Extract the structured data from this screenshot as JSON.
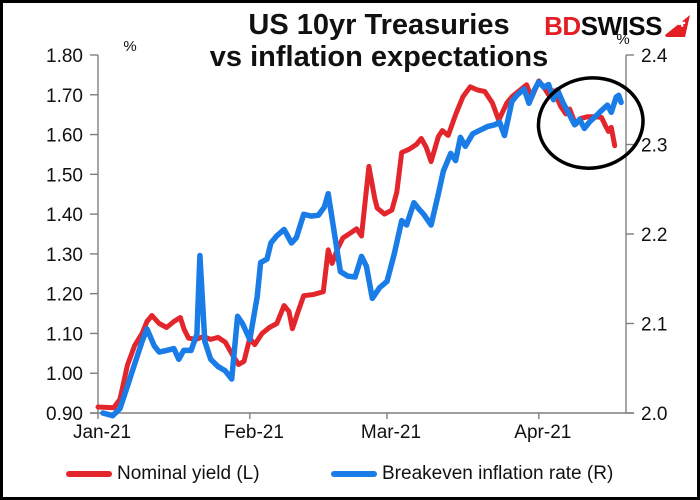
{
  "header": {
    "title_line1": "US 10yr Treasuries",
    "title_line2": "vs inflation expectations",
    "logo_bd": "BD",
    "logo_swiss": "SWISS"
  },
  "legend": {
    "items": [
      {
        "label": "Nominal yield (L)",
        "color": "#e2262c"
      },
      {
        "label": "Breakeven inflation rate (R)",
        "color": "#1a7ce6"
      }
    ]
  },
  "chart_data": {
    "type": "line",
    "title": "US 10yr Treasuries vs inflation expectations",
    "grid": false,
    "legend_position": "bottom",
    "left_axis": {
      "label": "%",
      "min": 0.9,
      "max": 1.8,
      "tick_labels": [
        "1.80",
        "1.70",
        "1.60",
        "1.50",
        "1.40",
        "1.30",
        "1.20",
        "1.10",
        "1.00",
        "0.90"
      ]
    },
    "right_axis": {
      "label": "%",
      "min": 2.0,
      "max": 2.4,
      "tick_labels": [
        "2.4",
        "2.3",
        "2.2",
        "2.1",
        "2.0"
      ]
    },
    "x_axis": {
      "domain_days": [
        0,
        107.8
      ],
      "tick_days": [
        0,
        31,
        59,
        90
      ],
      "tick_labels": [
        "Jan-21",
        "Feb-21",
        "Mar-21",
        "Apr-21"
      ]
    },
    "series": [
      {
        "name": "Nominal yield (L)",
        "axis": "left",
        "color": "#e2262c",
        "width": 5,
        "points": [
          [
            0,
            0.915
          ],
          [
            3.2,
            0.913
          ],
          [
            4.5,
            0.935
          ],
          [
            6,
            1.02
          ],
          [
            7.5,
            1.07
          ],
          [
            9,
            1.1
          ],
          [
            10,
            1.13
          ],
          [
            11,
            1.145
          ],
          [
            12.5,
            1.125
          ],
          [
            14,
            1.115
          ],
          [
            15.5,
            1.13
          ],
          [
            16.8,
            1.14
          ],
          [
            17.6,
            1.11
          ],
          [
            18.5,
            1.088
          ],
          [
            20,
            1.085
          ],
          [
            21.5,
            1.092
          ],
          [
            23,
            1.085
          ],
          [
            24.5,
            1.09
          ],
          [
            26,
            1.078
          ],
          [
            27.5,
            1.045
          ],
          [
            28.7,
            1.022
          ],
          [
            29.8,
            1.03
          ],
          [
            31,
            1.088
          ],
          [
            32,
            1.072
          ],
          [
            33.5,
            1.1
          ],
          [
            35,
            1.115
          ],
          [
            36.5,
            1.125
          ],
          [
            38,
            1.17
          ],
          [
            39,
            1.155
          ],
          [
            39.7,
            1.112
          ],
          [
            41,
            1.16
          ],
          [
            42,
            1.195
          ],
          [
            44,
            1.198
          ],
          [
            46,
            1.205
          ],
          [
            47,
            1.31
          ],
          [
            47.8,
            1.276
          ],
          [
            49,
            1.315
          ],
          [
            50,
            1.34
          ],
          [
            51.5,
            1.352
          ],
          [
            52.8,
            1.363
          ],
          [
            53.8,
            1.345
          ],
          [
            55.3,
            1.52
          ],
          [
            56.5,
            1.44
          ],
          [
            57,
            1.415
          ],
          [
            58.5,
            1.4
          ],
          [
            60,
            1.41
          ],
          [
            61,
            1.455
          ],
          [
            62,
            1.555
          ],
          [
            63.5,
            1.563
          ],
          [
            65,
            1.575
          ],
          [
            66,
            1.59
          ],
          [
            67,
            1.568
          ],
          [
            68,
            1.532
          ],
          [
            69.5,
            1.595
          ],
          [
            70.3,
            1.61
          ],
          [
            71.5,
            1.598
          ],
          [
            73,
            1.65
          ],
          [
            74.5,
            1.695
          ],
          [
            76,
            1.72
          ],
          [
            77.5,
            1.712
          ],
          [
            79,
            1.708
          ],
          [
            80.5,
            1.68
          ],
          [
            81.8,
            1.636
          ],
          [
            83.5,
            1.68
          ],
          [
            84.5,
            1.695
          ],
          [
            86,
            1.71
          ],
          [
            87.5,
            1.725
          ],
          [
            88.5,
            1.692
          ],
          [
            90,
            1.735
          ],
          [
            91,
            1.72
          ],
          [
            92,
            1.7
          ],
          [
            93,
            1.71
          ],
          [
            94.5,
            1.67
          ],
          [
            95.5,
            1.652
          ],
          [
            96.3,
            1.664
          ],
          [
            97.5,
            1.625
          ],
          [
            98.5,
            1.64
          ],
          [
            100,
            1.645
          ],
          [
            101.5,
            1.645
          ],
          [
            102.8,
            1.643
          ],
          [
            103.5,
            1.625
          ],
          [
            104.2,
            1.608
          ],
          [
            104.8,
            1.618
          ],
          [
            105.5,
            1.572
          ]
        ]
      },
      {
        "name": "Breakeven inflation rate (R)",
        "axis": "right",
        "color": "#1a7ce6",
        "width": 5.5,
        "points": [
          [
            1,
            2.0
          ],
          [
            3,
            1.997
          ],
          [
            4.5,
            2.005
          ],
          [
            6,
            2.03
          ],
          [
            7.5,
            2.055
          ],
          [
            9,
            2.08
          ],
          [
            10,
            2.094
          ],
          [
            11.5,
            2.075
          ],
          [
            12.5,
            2.068
          ],
          [
            14,
            2.07
          ],
          [
            15.5,
            2.072
          ],
          [
            16.5,
            2.06
          ],
          [
            17.5,
            2.07
          ],
          [
            19,
            2.07
          ],
          [
            20.2,
            2.088
          ],
          [
            20.8,
            2.176
          ],
          [
            21.8,
            2.08
          ],
          [
            23,
            2.06
          ],
          [
            24.5,
            2.052
          ],
          [
            26,
            2.047
          ],
          [
            27.3,
            2.038
          ],
          [
            28.5,
            2.108
          ],
          [
            29.5,
            2.1
          ],
          [
            31,
            2.082
          ],
          [
            32.5,
            2.13
          ],
          [
            33.2,
            2.168
          ],
          [
            34.5,
            2.172
          ],
          [
            35.3,
            2.19
          ],
          [
            36.5,
            2.198
          ],
          [
            38,
            2.205
          ],
          [
            39.5,
            2.19
          ],
          [
            40.5,
            2.196
          ],
          [
            42,
            2.222
          ],
          [
            43.5,
            2.22
          ],
          [
            45,
            2.221
          ],
          [
            46.2,
            2.23
          ],
          [
            47,
            2.245
          ],
          [
            48,
            2.21
          ],
          [
            49.5,
            2.158
          ],
          [
            51,
            2.153
          ],
          [
            52.5,
            2.152
          ],
          [
            53.8,
            2.175
          ],
          [
            54.8,
            2.164
          ],
          [
            56,
            2.128
          ],
          [
            57.5,
            2.14
          ],
          [
            59,
            2.147
          ],
          [
            60.5,
            2.178
          ],
          [
            62,
            2.215
          ],
          [
            63,
            2.21
          ],
          [
            64.5,
            2.235
          ],
          [
            65.5,
            2.228
          ],
          [
            66.5,
            2.222
          ],
          [
            68,
            2.21
          ],
          [
            69.5,
            2.245
          ],
          [
            70.5,
            2.27
          ],
          [
            72,
            2.29
          ],
          [
            73,
            2.282
          ],
          [
            74,
            2.308
          ],
          [
            75,
            2.298
          ],
          [
            76.5,
            2.312
          ],
          [
            78,
            2.316
          ],
          [
            79.5,
            2.32
          ],
          [
            81,
            2.322
          ],
          [
            82,
            2.325
          ],
          [
            83,
            2.31
          ],
          [
            84.5,
            2.348
          ],
          [
            85.5,
            2.355
          ],
          [
            87,
            2.362
          ],
          [
            88,
            2.346
          ],
          [
            89,
            2.36
          ],
          [
            90,
            2.37
          ],
          [
            91,
            2.364
          ],
          [
            92,
            2.367
          ],
          [
            93,
            2.35
          ],
          [
            93.8,
            2.361
          ],
          [
            95,
            2.346
          ],
          [
            96,
            2.336
          ],
          [
            97.3,
            2.322
          ],
          [
            98.3,
            2.328
          ],
          [
            99.3,
            2.318
          ],
          [
            100.5,
            2.326
          ],
          [
            101.5,
            2.331
          ],
          [
            102.8,
            2.338
          ],
          [
            104,
            2.344
          ],
          [
            104.8,
            2.336
          ],
          [
            105.8,
            2.353
          ],
          [
            106.3,
            2.355
          ],
          [
            106.8,
            2.347
          ]
        ]
      }
    ],
    "annotation_ellipse": {
      "center_day": 100.6,
      "center_value_right": 2.324,
      "radius_days": 10.7,
      "radius_value_right": 0.0503,
      "rotation_deg": -8,
      "color": "#000000"
    }
  }
}
